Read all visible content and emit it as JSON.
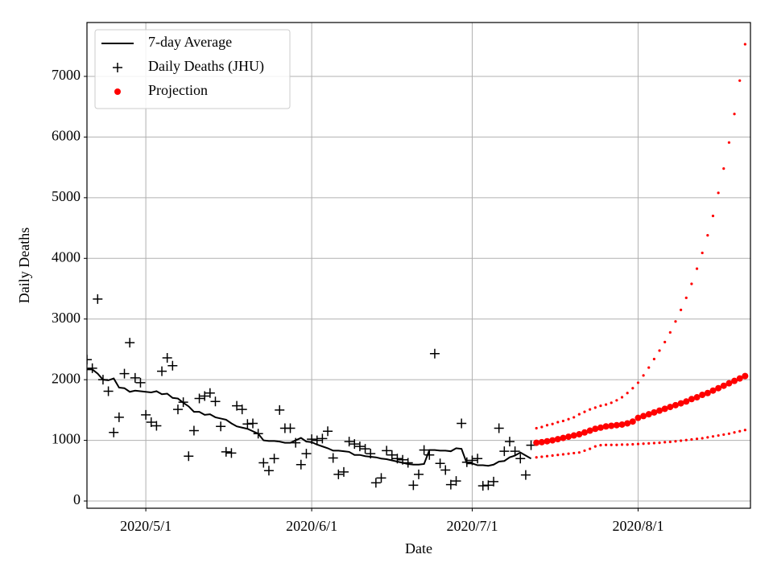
{
  "chart_data": {
    "type": "line",
    "x_label": "Date",
    "y_label": "Daily Deaths",
    "grid": true,
    "legend": "upper left",
    "xlim": [
      "2020-04-20",
      "2020-08-22"
    ],
    "xticks": [
      {
        "value": "2020-05-01",
        "label": "2020/5/1"
      },
      {
        "value": "2020-06-01",
        "label": "2020/6/1"
      },
      {
        "value": "2020-07-01",
        "label": "2020/7/1"
      },
      {
        "value": "2020-08-01",
        "label": "2020/8/1"
      }
    ],
    "ylim": [
      -119,
      7888
    ],
    "yticks": [
      0,
      1000,
      2000,
      3000,
      4000,
      5000,
      6000,
      7000
    ],
    "x": [
      "2020-04-20",
      "2020-04-21",
      "2020-04-22",
      "2020-04-23",
      "2020-04-24",
      "2020-04-25",
      "2020-04-26",
      "2020-04-27",
      "2020-04-28",
      "2020-04-29",
      "2020-04-30",
      "2020-05-01",
      "2020-05-02",
      "2020-05-03",
      "2020-05-04",
      "2020-05-05",
      "2020-05-06",
      "2020-05-07",
      "2020-05-08",
      "2020-05-09",
      "2020-05-10",
      "2020-05-11",
      "2020-05-12",
      "2020-05-13",
      "2020-05-14",
      "2020-05-15",
      "2020-05-16",
      "2020-05-17",
      "2020-05-18",
      "2020-05-19",
      "2020-05-20",
      "2020-05-21",
      "2020-05-22",
      "2020-05-23",
      "2020-05-24",
      "2020-05-25",
      "2020-05-26",
      "2020-05-27",
      "2020-05-28",
      "2020-05-29",
      "2020-05-30",
      "2020-05-31",
      "2020-06-01",
      "2020-06-02",
      "2020-06-03",
      "2020-06-04",
      "2020-06-05",
      "2020-06-06",
      "2020-06-07",
      "2020-06-08",
      "2020-06-09",
      "2020-06-10",
      "2020-06-11",
      "2020-06-12",
      "2020-06-13",
      "2020-06-14",
      "2020-06-15",
      "2020-06-16",
      "2020-06-17",
      "2020-06-18",
      "2020-06-19",
      "2020-06-20",
      "2020-06-21",
      "2020-06-22",
      "2020-06-23",
      "2020-06-24",
      "2020-06-25",
      "2020-06-26",
      "2020-06-27",
      "2020-06-28",
      "2020-06-29",
      "2020-06-30",
      "2020-07-01",
      "2020-07-02",
      "2020-07-03",
      "2020-07-04",
      "2020-07-05",
      "2020-07-06",
      "2020-07-07",
      "2020-07-08",
      "2020-07-09",
      "2020-07-10",
      "2020-07-11",
      "2020-07-12"
    ],
    "series": [
      {
        "name": "7-day Average",
        "color": "#000000",
        "style": "line",
        "values": [
          2170,
          2170,
          2100,
          2000,
          1990,
          2020,
          1870,
          1860,
          1800,
          1820,
          1810,
          1800,
          1790,
          1810,
          1760,
          1770,
          1700,
          1690,
          1620,
          1560,
          1470,
          1470,
          1420,
          1430,
          1380,
          1360,
          1340,
          1280,
          1230,
          1210,
          1190,
          1150,
          1110,
          1000,
          990,
          990,
          980,
          960,
          960,
          1000,
          1040,
          980,
          970,
          930,
          900,
          870,
          830,
          830,
          820,
          810,
          760,
          760,
          740,
          730,
          720,
          700,
          690,
          670,
          650,
          630,
          610,
          600,
          600,
          610,
          840,
          840,
          830,
          830,
          820,
          870,
          860,
          620,
          620,
          590,
          590,
          580,
          600,
          650,
          660,
          720,
          750,
          800,
          750,
          700
        ]
      },
      {
        "name": "Daily Deaths (JHU)",
        "color": "#000000",
        "style": "plus",
        "values": [
          2330,
          2190,
          3330,
          2000,
          1810,
          1130,
          1380,
          2100,
          2610,
          2030,
          1950,
          1420,
          1300,
          1240,
          2140,
          2360,
          2230,
          1510,
          1630,
          740,
          1160,
          1690,
          1730,
          1780,
          1640,
          1230,
          810,
          790,
          1570,
          1510,
          1270,
          1280,
          1110,
          630,
          500,
          700,
          1500,
          1200,
          1200,
          960,
          600,
          780,
          1020,
          1000,
          1030,
          1150,
          710,
          440,
          480,
          980,
          940,
          900,
          860,
          780,
          300,
          380,
          830,
          760,
          700,
          680,
          630,
          260,
          440,
          840,
          760,
          2430,
          620,
          510,
          270,
          330,
          1280,
          640,
          670,
          700,
          250,
          260,
          320,
          1200,
          820,
          980,
          820,
          700,
          430,
          920
        ]
      },
      {
        "name": "Projection",
        "color": "#ff0000",
        "style": "dot",
        "x": [
          "2020-07-13",
          "2020-07-14",
          "2020-07-15",
          "2020-07-16",
          "2020-07-17",
          "2020-07-18",
          "2020-07-19",
          "2020-07-20",
          "2020-07-21",
          "2020-07-22",
          "2020-07-23",
          "2020-07-24",
          "2020-07-25",
          "2020-07-26",
          "2020-07-27",
          "2020-07-28",
          "2020-07-29",
          "2020-07-30",
          "2020-07-31",
          "2020-08-01",
          "2020-08-02",
          "2020-08-03",
          "2020-08-04",
          "2020-08-05",
          "2020-08-06",
          "2020-08-07",
          "2020-08-08",
          "2020-08-09",
          "2020-08-10",
          "2020-08-11",
          "2020-08-12",
          "2020-08-13",
          "2020-08-14",
          "2020-08-15",
          "2020-08-16",
          "2020-08-17",
          "2020-08-18",
          "2020-08-19",
          "2020-08-20",
          "2020-08-21"
        ],
        "values": [
          960,
          970,
          985,
          1000,
          1020,
          1040,
          1060,
          1080,
          1100,
          1130,
          1160,
          1190,
          1210,
          1230,
          1240,
          1250,
          1260,
          1280,
          1310,
          1370,
          1400,
          1430,
          1460,
          1490,
          1520,
          1550,
          1580,
          1610,
          1640,
          1680,
          1710,
          1750,
          1780,
          1820,
          1860,
          1900,
          1940,
          1980,
          2020,
          2060
        ],
        "upper": [
          1200,
          1220,
          1250,
          1270,
          1300,
          1320,
          1350,
          1380,
          1430,
          1470,
          1510,
          1540,
          1570,
          1590,
          1620,
          1660,
          1710,
          1780,
          1860,
          1950,
          2070,
          2200,
          2340,
          2480,
          2620,
          2780,
          2960,
          3150,
          3350,
          3580,
          3830,
          4090,
          4380,
          4700,
          5080,
          5480,
          5910,
          6380,
          6930,
          7530
        ],
        "lower": [
          720,
          730,
          740,
          750,
          760,
          770,
          780,
          790,
          800,
          830,
          860,
          900,
          920,
          925,
          925,
          925,
          930,
          930,
          935,
          940,
          945,
          950,
          955,
          960,
          970,
          975,
          985,
          995,
          1005,
          1015,
          1025,
          1035,
          1050,
          1065,
          1080,
          1095,
          1110,
          1130,
          1150,
          1170
        ]
      }
    ]
  }
}
